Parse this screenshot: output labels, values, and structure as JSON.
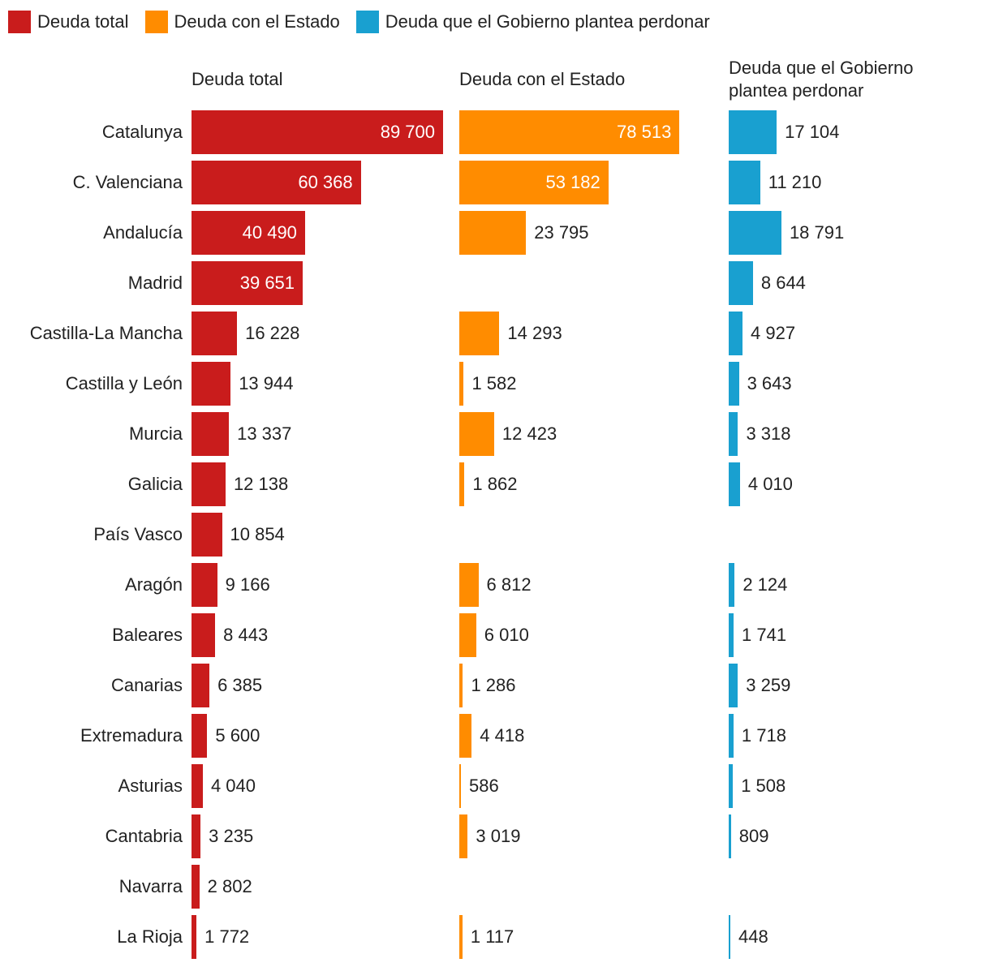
{
  "legend": [
    {
      "label": "Deuda total",
      "color": "#c91c1c"
    },
    {
      "label": "Deuda con el Estado",
      "color": "#ff8c00"
    },
    {
      "label": "Deuda que el Gobierno plantea perdonar",
      "color": "#19a0d0"
    }
  ],
  "chart_data": {
    "type": "bar",
    "orientation": "horizontal",
    "unit": "",
    "categories": [
      "Catalunya",
      "C. Valenciana",
      "Andalucía",
      "Madrid",
      "Castilla-La Mancha",
      "Castilla y León",
      "Murcia",
      "Galicia",
      "País Vasco",
      "Aragón",
      "Baleares",
      "Canarias",
      "Extremadura",
      "Asturias",
      "Cantabria",
      "Navarra",
      "La Rioja"
    ],
    "series": [
      {
        "name": "Deuda total",
        "column_title": "Deuda total",
        "color": "#c91c1c",
        "values": [
          89700,
          60368,
          40490,
          39651,
          16228,
          13944,
          13337,
          12138,
          10854,
          9166,
          8443,
          6385,
          5600,
          4040,
          3235,
          2802,
          1772
        ],
        "labels": [
          "89 700",
          "60 368",
          "40 490",
          "39 651",
          "16 228",
          "13 944",
          "13 337",
          "12 138",
          "10 854",
          "9 166",
          "8 443",
          "6 385",
          "5 600",
          "4 040",
          "3 235",
          "2 802",
          "1 772"
        ]
      },
      {
        "name": "Deuda con el Estado",
        "column_title": "Deuda con el Estado",
        "color": "#ff8c00",
        "values": [
          78513,
          53182,
          23795,
          null,
          14293,
          1582,
          12423,
          1862,
          null,
          6812,
          6010,
          1286,
          4418,
          586,
          3019,
          null,
          1117
        ],
        "labels": [
          "78 513",
          "53 182",
          "23 795",
          null,
          "14 293",
          "1 582",
          "12 423",
          "1 862",
          null,
          "6 812",
          "6 010",
          "1 286",
          "4 418",
          "586",
          "3 019",
          null,
          "1 117"
        ]
      },
      {
        "name": "Deuda que el Gobierno plantea perdonar",
        "column_title": [
          "Deuda que el Gobierno",
          "plantea perdonar"
        ],
        "color": "#19a0d0",
        "values": [
          17104,
          11210,
          18791,
          8644,
          4927,
          3643,
          3318,
          4010,
          null,
          2124,
          1741,
          3259,
          1718,
          1508,
          809,
          null,
          448
        ],
        "labels": [
          "17 104",
          "11 210",
          "18 791",
          "8 644",
          "4 927",
          "3 643",
          "3 318",
          "4 010",
          null,
          "2 124",
          "1 741",
          "3 259",
          "1 718",
          "1 508",
          "809",
          null,
          "448"
        ]
      }
    ]
  }
}
